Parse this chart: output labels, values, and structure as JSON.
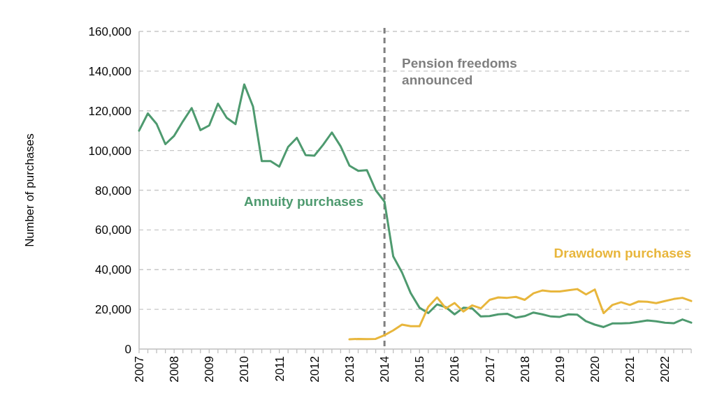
{
  "chart_data": {
    "type": "line",
    "ylabel": "Number of purchases",
    "xlim": [
      2007,
      2022.75
    ],
    "ylim": [
      0,
      160000
    ],
    "yticks": [
      0,
      {
        "value": 20000,
        "label": "20,000"
      },
      {
        "value": 40000,
        "label": "40,000"
      },
      {
        "value": 60000,
        "label": "60,000"
      },
      {
        "value": 80000,
        "label": "80,000"
      },
      {
        "value": 100000,
        "label": "100,000"
      },
      {
        "value": 120000,
        "label": "120,000"
      },
      {
        "value": 140000,
        "label": "140,000"
      },
      {
        "value": 160000,
        "label": "160,000"
      }
    ],
    "xticks": [
      2007,
      {
        "value": 2007.25,
        "label": null
      },
      {
        "value": 2007.5,
        "label": null
      },
      {
        "value": 2007.75,
        "label": null
      },
      2008,
      {
        "value": 2008.25,
        "label": null
      },
      {
        "value": 2008.5,
        "label": null
      },
      {
        "value": 2008.75,
        "label": null
      },
      2009,
      {
        "value": 2009.25,
        "label": null
      },
      {
        "value": 2009.5,
        "label": null
      },
      {
        "value": 2009.75,
        "label": null
      },
      2010,
      {
        "value": 2010.25,
        "label": null
      },
      {
        "value": 2010.5,
        "label": null
      },
      {
        "value": 2010.75,
        "label": null
      },
      2011,
      {
        "value": 2011.25,
        "label": null
      },
      {
        "value": 2011.5,
        "label": null
      },
      {
        "value": 2011.75,
        "label": null
      },
      2012,
      {
        "value": 2012.25,
        "label": null
      },
      {
        "value": 2012.5,
        "label": null
      },
      {
        "value": 2012.75,
        "label": null
      },
      2013,
      {
        "value": 2013.25,
        "label": null
      },
      {
        "value": 2013.5,
        "label": null
      },
      {
        "value": 2013.75,
        "label": null
      },
      2014,
      {
        "value": 2014.25,
        "label": null
      },
      {
        "value": 2014.5,
        "label": null
      },
      {
        "value": 2014.75,
        "label": null
      },
      2015,
      {
        "value": 2015.25,
        "label": null
      },
      {
        "value": 2015.5,
        "label": null
      },
      {
        "value": 2015.75,
        "label": null
      },
      2016,
      {
        "value": 2016.25,
        "label": null
      },
      {
        "value": 2016.5,
        "label": null
      },
      {
        "value": 2016.75,
        "label": null
      },
      2017,
      {
        "value": 2017.25,
        "label": null
      },
      {
        "value": 2017.5,
        "label": null
      },
      {
        "value": 2017.75,
        "label": null
      },
      2018,
      {
        "value": 2018.25,
        "label": null
      },
      {
        "value": 2018.5,
        "label": null
      },
      {
        "value": 2018.75,
        "label": null
      },
      2019,
      {
        "value": 2019.25,
        "label": null
      },
      {
        "value": 2019.5,
        "label": null
      },
      {
        "value": 2019.75,
        "label": null
      },
      2020,
      {
        "value": 2020.25,
        "label": null
      },
      {
        "value": 2020.5,
        "label": null
      },
      {
        "value": 2020.75,
        "label": null
      },
      2021,
      {
        "value": 2021.25,
        "label": null
      },
      {
        "value": 2021.5,
        "label": null
      },
      {
        "value": 2021.75,
        "label": null
      },
      2022,
      {
        "value": 2022.25,
        "label": null
      },
      {
        "value": 2022.5,
        "label": null
      },
      {
        "value": 2022.75,
        "label": null
      }
    ],
    "grid": "y",
    "legend": false,
    "line_style": "solid",
    "marker": "none",
    "ref_lines": [
      {
        "axis": "x",
        "value": 2014,
        "label": "Pension freedoms announced",
        "color": "#7f7f7f",
        "line_style": "dashed"
      }
    ],
    "series": [
      {
        "name": "Annuity purchases",
        "color": "#4e9a6f",
        "x": [
          2007,
          2007.25,
          2007.5,
          2007.75,
          2008,
          2008.25,
          2008.5,
          2008.75,
          2009,
          2009.25,
          2009.5,
          2009.75,
          2010,
          2010.25,
          2010.5,
          2010.75,
          2011,
          2011.25,
          2011.5,
          2011.75,
          2012,
          2012.25,
          2012.5,
          2012.75,
          2013,
          2013.25,
          2013.5,
          2013.75,
          2014,
          2014.25,
          2014.5,
          2014.75,
          2015,
          2015.25,
          2015.5,
          2015.75,
          2016,
          2016.25,
          2016.5,
          2016.75,
          2017,
          2017.25,
          2017.5,
          2017.75,
          2018,
          2018.25,
          2018.5,
          2018.75,
          2019,
          2019.25,
          2019.5,
          2019.75,
          2020,
          2020.25,
          2020.5,
          2020.75,
          2021,
          2021.25,
          2021.5,
          2021.75,
          2022,
          2022.25,
          2022.5,
          2022.75
        ],
        "values": [
          110000,
          118700,
          113400,
          103200,
          107400,
          114700,
          121400,
          110300,
          112600,
          123600,
          116500,
          113300,
          133300,
          122200,
          94700,
          94700,
          91900,
          101800,
          106400,
          97700,
          97400,
          102900,
          109100,
          102100,
          92400,
          89800,
          90100,
          80000,
          74300,
          46700,
          38600,
          28100,
          20800,
          18100,
          22500,
          21100,
          17500,
          20800,
          20500,
          16400,
          16600,
          17500,
          17800,
          15800,
          16600,
          18400,
          17500,
          16400,
          16200,
          17500,
          17300,
          14000,
          12300,
          11100,
          12900,
          12900,
          13100,
          13700,
          14400,
          14000,
          13300,
          13000,
          14900,
          13300
        ]
      },
      {
        "name": "Drawdown purchases",
        "color": "#e8b63c",
        "x": [
          2013,
          2013.25,
          2013.5,
          2013.75,
          2014,
          2014.25,
          2014.5,
          2014.75,
          2015,
          2015.25,
          2015.5,
          2015.75,
          2016,
          2016.25,
          2016.5,
          2016.75,
          2017,
          2017.25,
          2017.5,
          2017.75,
          2018,
          2018.25,
          2018.5,
          2018.75,
          2019,
          2019.25,
          2019.5,
          2019.75,
          2020,
          2020.25,
          2020.5,
          2020.75,
          2021,
          2021.25,
          2021.5,
          2021.75,
          2022,
          2022.25,
          2022.5,
          2022.75
        ],
        "values": [
          4900,
          5100,
          5000,
          5100,
          7000,
          9400,
          12300,
          11500,
          11500,
          21300,
          26000,
          20500,
          23200,
          18900,
          22000,
          20500,
          24800,
          26000,
          25800,
          26300,
          24800,
          28100,
          29500,
          29000,
          29000,
          29600,
          30200,
          27500,
          30000,
          18100,
          22200,
          23600,
          22200,
          24000,
          23800,
          23100,
          24200,
          25200,
          25800,
          24200
        ]
      }
    ]
  }
}
